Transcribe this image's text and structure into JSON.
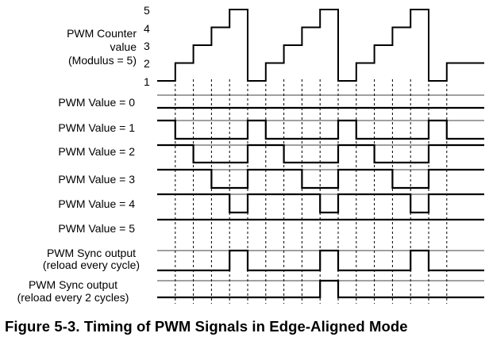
{
  "counter": {
    "label_lines": [
      "PWM Counter",
      "value",
      "(Modulus = 5)"
    ],
    "levels": [
      "1",
      "2",
      "3",
      "4",
      "5"
    ],
    "sequence": [
      1,
      2,
      3,
      4,
      5,
      1,
      2,
      3,
      4,
      5,
      1,
      2,
      3,
      4,
      5,
      1,
      2
    ]
  },
  "rows": [
    {
      "label": "PWM Value = 0",
      "pwm_value": 0,
      "type": "pwm"
    },
    {
      "label": "PWM Value = 1",
      "pwm_value": 1,
      "type": "pwm"
    },
    {
      "label": "PWM Value = 2",
      "pwm_value": 2,
      "type": "pwm"
    },
    {
      "label": "PWM Value = 3",
      "pwm_value": 3,
      "type": "pwm"
    },
    {
      "label": "PWM Value = 4",
      "pwm_value": 4,
      "type": "pwm"
    },
    {
      "label": "PWM Value = 5",
      "pwm_value": 5,
      "type": "pwm"
    },
    {
      "label_lines": [
        "PWM Sync output",
        "(reload every cycle)"
      ],
      "type": "sync",
      "reload_every": 1
    },
    {
      "label_lines": [
        "PWM Sync output",
        "(reload every 2 cycles)"
      ],
      "type": "sync",
      "reload_every": 2
    }
  ],
  "caption": "Figure 5-3.   Timing of PWM Signals in Edge-Aligned Mode"
}
